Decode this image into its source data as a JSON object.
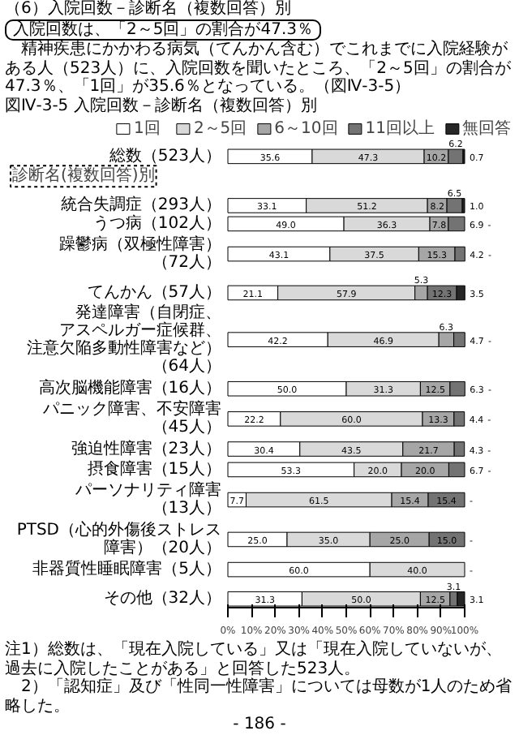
{
  "chart_data": {
    "type": "bar",
    "orientation": "horizontal",
    "stacked": true,
    "title": "図Ⅳ-3-5 入院回数－診断名（複数回答）別",
    "annotations": [
      "（6）入院回数－診断名（複数回答）別",
      "入院回数は、「2～5回」の割合が47.3％",
      "　精神疾患にかかわる病気（てんかん含む）でこれまでに入院経験がある人（523人）に、入院回数を聞いたところ、「2～5回」の割合が47.3％、「1回」が35.6％となっている。（図Ⅳ-3-5）",
      "診断名(複数回答)別",
      "注1）総数は、「現在入院している」又は「現在入院していないが、過去に入院したことがある」と回答した523人。",
      "　2）「認知症」及び「性同一性障害」については母数が1人のため省略した。",
      "- 186 -"
    ],
    "categories": [
      "総数（523人）",
      "統合失調症（293人）",
      "うつ病（102人）",
      "躁鬱病（双極性障害）（72人）",
      "てんかん（57人）",
      "発達障害（自閉症、アスペルガー症候群、注意欠陥多動性障害など）（64人）",
      "高次脳機能障害（16人）",
      "パニック障害、不安障害（45人）",
      "強迫性障害（23人）",
      "摂食障害（15人）",
      "パーソナリティ障害（13人）",
      "PTSD（心的外傷後ストレス障害）（20人）",
      "非器質性睡眠障害（5人）",
      "その他（32人）"
    ],
    "series": [
      {
        "name": "1回",
        "color": "#ffffff",
        "values": [
          35.6,
          33.1,
          49.0,
          43.1,
          21.1,
          42.2,
          50.0,
          22.2,
          30.4,
          53.3,
          7.7,
          25.0,
          60.0,
          31.3
        ],
        "value_labels": [
          "35.6",
          "33.1",
          "49.0",
          "43.1",
          "21.1",
          "42.2",
          "50.0",
          "22.2",
          "30.4",
          "53.3",
          "7.7",
          "25.0",
          "60.0",
          "31.3"
        ]
      },
      {
        "name": "2～5回",
        "color": "#d9d9d9",
        "values": [
          47.3,
          51.2,
          36.3,
          37.5,
          57.9,
          46.9,
          31.3,
          60.0,
          43.5,
          20.0,
          61.5,
          35.0,
          40.0,
          50.0
        ],
        "value_labels": [
          "47.3",
          "51.2",
          "36.3",
          "37.5",
          "57.9",
          "46.9",
          "31.3",
          "60.0",
          "43.5",
          "20.0",
          "61.5",
          "35.0",
          "40.0",
          "50.0"
        ]
      },
      {
        "name": "6～10回",
        "color": "#a6a6a6",
        "values": [
          10.2,
          8.2,
          7.8,
          15.3,
          5.3,
          6.3,
          12.5,
          13.3,
          21.7,
          20.0,
          15.4,
          25.0,
          0,
          12.5
        ],
        "value_labels": [
          "10.2",
          "8.2",
          "7.8",
          "15.3",
          "5.3",
          "6.3",
          "12.5",
          "13.3",
          "21.7",
          "20.0",
          "15.4",
          "25.0",
          null,
          "12.5"
        ]
      },
      {
        "name": "11回以上",
        "color": "#737373",
        "values": [
          6.2,
          6.5,
          6.9,
          4.2,
          12.3,
          4.7,
          6.3,
          4.4,
          4.3,
          6.7,
          15.4,
          15.0,
          0,
          3.1
        ],
        "value_labels": [
          "6.2",
          "6.5",
          "6.9",
          "4.2",
          "12.3",
          "4.7",
          "6.3",
          "4.4",
          "4.3",
          "6.7",
          "15.4",
          "15.0",
          null,
          "3.1"
        ]
      },
      {
        "name": "無回答",
        "color": "#262626",
        "values": [
          0.7,
          1.0,
          0,
          0,
          3.5,
          0,
          0,
          0,
          0,
          0,
          0,
          0,
          0,
          3.1
        ],
        "value_labels": [
          "0.7",
          "1.0",
          "-",
          "-",
          "3.5",
          "-",
          "-",
          "-",
          "-",
          "-",
          "-",
          "-",
          "-",
          "3.1"
        ]
      }
    ],
    "xlim": [
      0,
      100
    ],
    "xticks": [
      {
        "value": 0,
        "label": "0%"
      },
      {
        "value": 10,
        "label": "10%"
      },
      {
        "value": 20,
        "label": "20%"
      },
      {
        "value": 30,
        "label": "30%"
      },
      {
        "value": 40,
        "label": "40%"
      },
      {
        "value": 50,
        "label": "50%"
      },
      {
        "value": 60,
        "label": "60%"
      },
      {
        "value": 70,
        "label": "70%"
      },
      {
        "value": 80,
        "label": "80%"
      },
      {
        "value": 90,
        "label": "90%"
      },
      {
        "value": 100,
        "label": "100%"
      }
    ],
    "legend": "top",
    "grid": false
  }
}
